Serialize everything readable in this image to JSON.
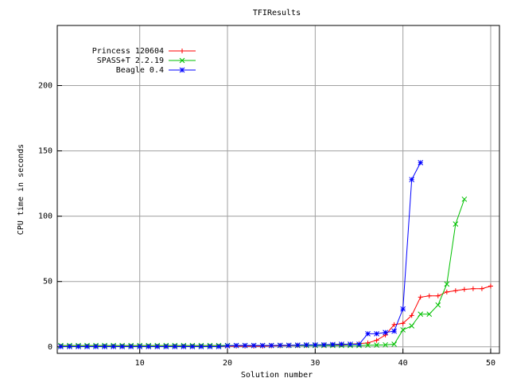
{
  "chart_data": {
    "type": "line",
    "title": "TFIResults",
    "x_label": "Solution number",
    "y_label": "CPU time in seconds",
    "x": [
      1,
      2,
      3,
      4,
      5,
      6,
      7,
      8,
      9,
      10,
      11,
      12,
      13,
      14,
      15,
      16,
      17,
      18,
      19,
      20,
      21,
      22,
      23,
      24,
      25,
      26,
      27,
      28,
      29,
      30,
      31,
      32,
      33,
      34,
      35,
      36,
      37,
      38,
      39,
      40,
      41,
      42,
      43,
      44,
      45,
      46,
      47,
      48,
      49,
      50
    ],
    "series": [
      {
        "name": "Princess 120604",
        "color": "#ff0000",
        "marker": "plus",
        "values": [
          0.3,
          0.3,
          0.3,
          0.3,
          0.3,
          0.3,
          0.3,
          0.3,
          0.3,
          0.3,
          0.3,
          0.3,
          0.3,
          0.3,
          0.3,
          0.3,
          0.3,
          0.3,
          0.3,
          0.5,
          0.5,
          0.5,
          0.5,
          0.5,
          0.7,
          0.8,
          0.9,
          1,
          1,
          1.2,
          1.3,
          1.5,
          1.7,
          2,
          2.5,
          3,
          5,
          9,
          17,
          18,
          24,
          38,
          39,
          39,
          42,
          43,
          44,
          44.5,
          44.5,
          46.5
        ]
      },
      {
        "name": "SPASS+T 2.2.19",
        "color": "#00c000",
        "marker": "cross",
        "values": [
          1,
          1,
          1,
          1,
          1,
          1,
          1,
          1,
          1,
          1,
          1,
          1,
          1,
          1,
          1,
          1,
          1,
          1,
          1,
          1,
          1,
          1,
          1,
          1,
          1,
          1,
          1,
          1,
          1,
          1,
          1,
          1,
          1,
          1,
          1,
          1.2,
          1.3,
          1.5,
          2,
          13,
          16,
          25,
          25,
          32,
          48,
          94,
          113,
          null,
          null,
          null
        ]
      },
      {
        "name": "Beagle 0.4",
        "color": "#0000ff",
        "marker": "star",
        "values": [
          0.2,
          0.2,
          0.2,
          0.2,
          0.2,
          0.2,
          0.2,
          0.2,
          0.2,
          0.2,
          0.2,
          0.2,
          0.2,
          0.2,
          0.2,
          0.2,
          0.2,
          0.2,
          0.2,
          0.8,
          1,
          1,
          1,
          1,
          1,
          1.2,
          1.2,
          1.3,
          1.5,
          1.5,
          1.6,
          1.8,
          2,
          2,
          2,
          10,
          10,
          11,
          12,
          29,
          128,
          141,
          null,
          null,
          null,
          null,
          null,
          null,
          null,
          null
        ]
      }
    ],
    "xlim": [
      0.6,
      51
    ],
    "ylim": [
      -5,
      246
    ],
    "xticks": [
      10,
      20,
      30,
      40,
      50
    ],
    "yticks": [
      0,
      50,
      100,
      150,
      200
    ],
    "grid": true,
    "legend": "top-left"
  }
}
